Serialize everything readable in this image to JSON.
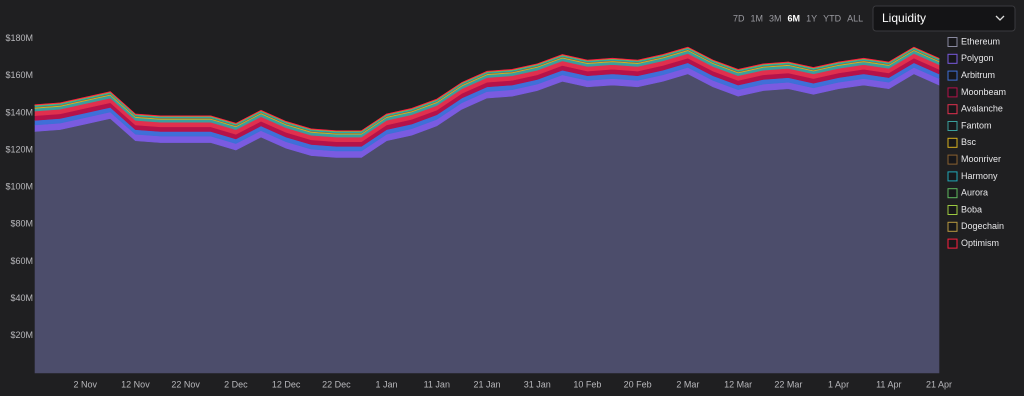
{
  "ui": {
    "ranges": [
      "7D",
      "1M",
      "3M",
      "6M",
      "1Y",
      "YTD",
      "ALL"
    ],
    "selected_range": "6M",
    "dropdown": "Liquidity"
  },
  "chart_data": {
    "type": "stacked_area",
    "categories": [
      null,
      null,
      "2 Nov",
      null,
      "12 Nov",
      null,
      "22 Nov",
      null,
      "2 Dec",
      null,
      "12 Dec",
      null,
      "22 Dec",
      null,
      "1 Jan",
      null,
      "11 Jan",
      null,
      "21 Jan",
      null,
      "31 Jan",
      null,
      "10 Feb",
      null,
      "20 Feb",
      null,
      "2 Mar",
      null,
      "12 Mar",
      null,
      "22 Mar",
      null,
      "1 Apr",
      null,
      "11 Apr",
      null,
      "21 Apr"
    ],
    "ylim": [
      0,
      190
    ],
    "yticks": [
      {
        "value": 20,
        "label": "$20M"
      },
      {
        "value": 40,
        "label": "$40M"
      },
      {
        "value": 60,
        "label": "$60M"
      },
      {
        "value": 80,
        "label": "$80M"
      },
      {
        "value": 100,
        "label": "$100M"
      },
      {
        "value": 120,
        "label": "$120M"
      },
      {
        "value": 140,
        "label": "$140M"
      },
      {
        "value": 160,
        "label": "$160M"
      },
      {
        "value": 180,
        "label": "$180M"
      }
    ],
    "grid": false,
    "legend": "right",
    "series": [
      {
        "name": "Ethereum",
        "color": "#4c4d6b",
        "values": [
          130,
          131,
          134,
          137,
          125,
          124,
          124,
          124,
          120,
          127,
          121,
          117,
          116,
          116,
          125,
          128,
          133,
          142,
          148,
          149,
          152,
          157,
          154,
          155,
          154,
          157,
          161,
          154,
          149,
          152,
          153,
          150,
          153,
          155,
          153,
          161,
          155
        ]
      },
      {
        "name": "Polygon",
        "color": "#7a5be0",
        "values": [
          3.5,
          3.5,
          3.5,
          3.5,
          3.5,
          3.5,
          3.5,
          3.5,
          3.5,
          3.5,
          3.5,
          3.5,
          3.5,
          3.5,
          3.5,
          3.5,
          3.5,
          3.5,
          3.5,
          3.5,
          3.5,
          3.5,
          3.5,
          3.5,
          3.5,
          3.5,
          3.5,
          3.5,
          3.5,
          3.5,
          3.5,
          3.5,
          3.5,
          3.5,
          3.5,
          3.5,
          3.5
        ]
      },
      {
        "name": "Arbitrum",
        "color": "#3f6fd8",
        "values": [
          2.5,
          2.5,
          2.5,
          2.5,
          2.5,
          2.5,
          2.5,
          2.5,
          2.5,
          2.5,
          2.5,
          2.5,
          2.5,
          2.5,
          2.5,
          2.5,
          2.5,
          2.5,
          2.5,
          2.5,
          2.5,
          2.5,
          2.5,
          2.5,
          2.5,
          2.5,
          2.5,
          2.5,
          2.5,
          2.5,
          2.5,
          2.5,
          2.5,
          2.5,
          2.5,
          2.5,
          2.5
        ]
      },
      {
        "name": "Moonbeam",
        "color": "#b5124a",
        "values": [
          2.5,
          2.5,
          2.5,
          2.5,
          2.5,
          2.5,
          2.5,
          2.5,
          2.5,
          2.5,
          2.5,
          2.5,
          2.5,
          2.5,
          2.5,
          2.5,
          2.5,
          2.5,
          2.5,
          2.5,
          2.5,
          2.5,
          2.5,
          2.5,
          2.5,
          2.5,
          2.5,
          2.5,
          2.5,
          2.5,
          2.5,
          2.5,
          2.5,
          2.5,
          2.5,
          2.5,
          2.5
        ]
      },
      {
        "name": "Avalanche",
        "color": "#e0304e",
        "values": [
          2.5,
          2.5,
          2.5,
          2.5,
          2.5,
          2.5,
          2.5,
          2.5,
          2.5,
          2.5,
          2.5,
          2.5,
          2.5,
          2.5,
          2.5,
          2.5,
          2.5,
          2.5,
          2.5,
          2.5,
          2.5,
          2.5,
          2.5,
          2.5,
          2.5,
          2.5,
          2.5,
          2.5,
          2.5,
          2.5,
          2.5,
          2.5,
          2.5,
          2.5,
          2.5,
          2.5,
          2.5
        ]
      },
      {
        "name": "Fantom",
        "color": "#3a9f9c",
        "values": [
          1.5,
          1.5,
          1.5,
          1.5,
          1.5,
          1.5,
          1.5,
          1.5,
          1.5,
          1.5,
          1.5,
          1.5,
          1.5,
          1.5,
          1.5,
          1.5,
          1.5,
          1.5,
          1.5,
          1.5,
          1.5,
          1.5,
          1.5,
          1.5,
          1.5,
          1.5,
          1.5,
          1.5,
          1.5,
          1.5,
          1.5,
          1.5,
          1.5,
          1.5,
          1.5,
          1.5,
          1.5
        ]
      },
      {
        "name": "Bsc",
        "color": "#d6b020",
        "values": [
          0.5,
          0.5,
          0.5,
          0.5,
          0.5,
          0.5,
          0.5,
          0.5,
          0.5,
          0.5,
          0.5,
          0.5,
          0.5,
          0.5,
          0.5,
          0.5,
          0.5,
          0.5,
          0.5,
          0.5,
          0.5,
          0.5,
          0.5,
          0.5,
          0.5,
          0.5,
          0.5,
          0.5,
          0.5,
          0.5,
          0.5,
          0.5,
          0.5,
          0.5,
          0.5,
          0.5,
          0.5
        ]
      },
      {
        "name": "Moonriver",
        "color": "#8a6030",
        "values": [
          0.3,
          0.3,
          0.3,
          0.3,
          0.3,
          0.3,
          0.3,
          0.3,
          0.3,
          0.3,
          0.3,
          0.3,
          0.3,
          0.3,
          0.3,
          0.3,
          0.3,
          0.3,
          0.3,
          0.3,
          0.3,
          0.3,
          0.3,
          0.3,
          0.3,
          0.3,
          0.3,
          0.3,
          0.3,
          0.3,
          0.3,
          0.3,
          0.3,
          0.3,
          0.3,
          0.3,
          0.3
        ]
      },
      {
        "name": "Harmony",
        "color": "#20a8b8",
        "values": [
          0.5,
          0.5,
          0.5,
          0.5,
          0.5,
          0.5,
          0.5,
          0.5,
          0.5,
          0.5,
          0.5,
          0.5,
          0.5,
          0.5,
          0.5,
          0.5,
          0.5,
          0.5,
          0.5,
          0.5,
          0.5,
          0.5,
          0.5,
          0.5,
          0.5,
          0.5,
          0.5,
          0.5,
          0.5,
          0.5,
          0.5,
          0.5,
          0.5,
          0.5,
          0.5,
          0.5,
          0.5
        ]
      },
      {
        "name": "Aurora",
        "color": "#5fb85f",
        "values": [
          0.3,
          0.3,
          0.3,
          0.3,
          0.3,
          0.3,
          0.3,
          0.3,
          0.3,
          0.3,
          0.3,
          0.3,
          0.3,
          0.3,
          0.3,
          0.3,
          0.3,
          0.3,
          0.3,
          0.3,
          0.3,
          0.3,
          0.3,
          0.3,
          0.3,
          0.3,
          0.3,
          0.3,
          0.3,
          0.3,
          0.3,
          0.3,
          0.3,
          0.3,
          0.3,
          0.3,
          0.3
        ]
      },
      {
        "name": "Boba",
        "color": "#9cc840",
        "values": [
          0.1,
          0.1,
          0.1,
          0.1,
          0.1,
          0.1,
          0.1,
          0.1,
          0.1,
          0.1,
          0.1,
          0.1,
          0.1,
          0.1,
          0.1,
          0.1,
          0.1,
          0.1,
          0.1,
          0.1,
          0.1,
          0.1,
          0.1,
          0.1,
          0.1,
          0.1,
          0.1,
          0.1,
          0.1,
          0.1,
          0.1,
          0.1,
          0.1,
          0.1,
          0.1,
          0.1,
          0.1
        ]
      },
      {
        "name": "Dogechain",
        "color": "#b89a40",
        "values": [
          0.05,
          0.05,
          0.05,
          0.05,
          0.05,
          0.05,
          0.05,
          0.05,
          0.05,
          0.05,
          0.05,
          0.05,
          0.05,
          0.05,
          0.05,
          0.05,
          0.05,
          0.05,
          0.05,
          0.05,
          0.05,
          0.05,
          0.05,
          0.05,
          0.05,
          0.05,
          0.05,
          0.05,
          0.05,
          0.05,
          0.05,
          0.05,
          0.05,
          0.05,
          0.05,
          0.05,
          0.05
        ]
      },
      {
        "name": "Optimism",
        "color": "#ff2040",
        "values": [
          0.2,
          0.2,
          0.2,
          0.2,
          0.2,
          0.2,
          0.2,
          0.2,
          0.2,
          0.2,
          0.2,
          0.2,
          0.2,
          0.2,
          0.2,
          0.2,
          0.2,
          0.2,
          0.2,
          0.2,
          0.2,
          0.2,
          0.2,
          0.2,
          0.2,
          0.2,
          0.2,
          0.2,
          0.2,
          0.2,
          0.2,
          0.2,
          0.2,
          0.2,
          0.2,
          0.2,
          0.2
        ]
      }
    ]
  }
}
